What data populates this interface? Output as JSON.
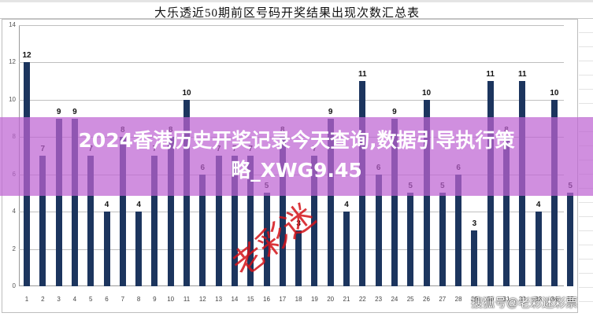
{
  "title": "大乐透近50期前区号码开奖结果出现次数汇总表",
  "banner": {
    "line1": "2024香港历史开奖记录今天查询,数据引导执行策",
    "line2": "略_XWG9.45"
  },
  "stamp_text": "老彩迷",
  "watermark": "搜狐号@老彩迷彩票",
  "colors": {
    "bar": "#1c355e",
    "banner": "#be64d2",
    "stamp": "#d4141a"
  },
  "chart_data": {
    "type": "bar",
    "title": "大乐透近50期前区号码开奖结果出现次数汇总表",
    "xlabel": "",
    "ylabel": "",
    "ylim": [
      0,
      14
    ],
    "yticks": [
      0,
      2,
      4,
      6,
      8,
      10,
      12,
      14
    ],
    "grid": true,
    "legend": null,
    "categories": [
      "1",
      "2",
      "3",
      "4",
      "5",
      "6",
      "7",
      "8",
      "9",
      "10",
      "11",
      "12",
      "13",
      "14",
      "15",
      "16",
      "17",
      "18",
      "19",
      "20",
      "21",
      "22",
      "23",
      "24",
      "25",
      "26",
      "27",
      "28",
      "29",
      "30",
      "31",
      "32",
      "33",
      "34",
      "35"
    ],
    "values": [
      12,
      7,
      9,
      9,
      7,
      4,
      8,
      4,
      7,
      8,
      10,
      6,
      7,
      7,
      7,
      5,
      8,
      3,
      7,
      9,
      4,
      11,
      6,
      9,
      5,
      10,
      5,
      6,
      3,
      11,
      8,
      11,
      4,
      10,
      5
    ]
  }
}
